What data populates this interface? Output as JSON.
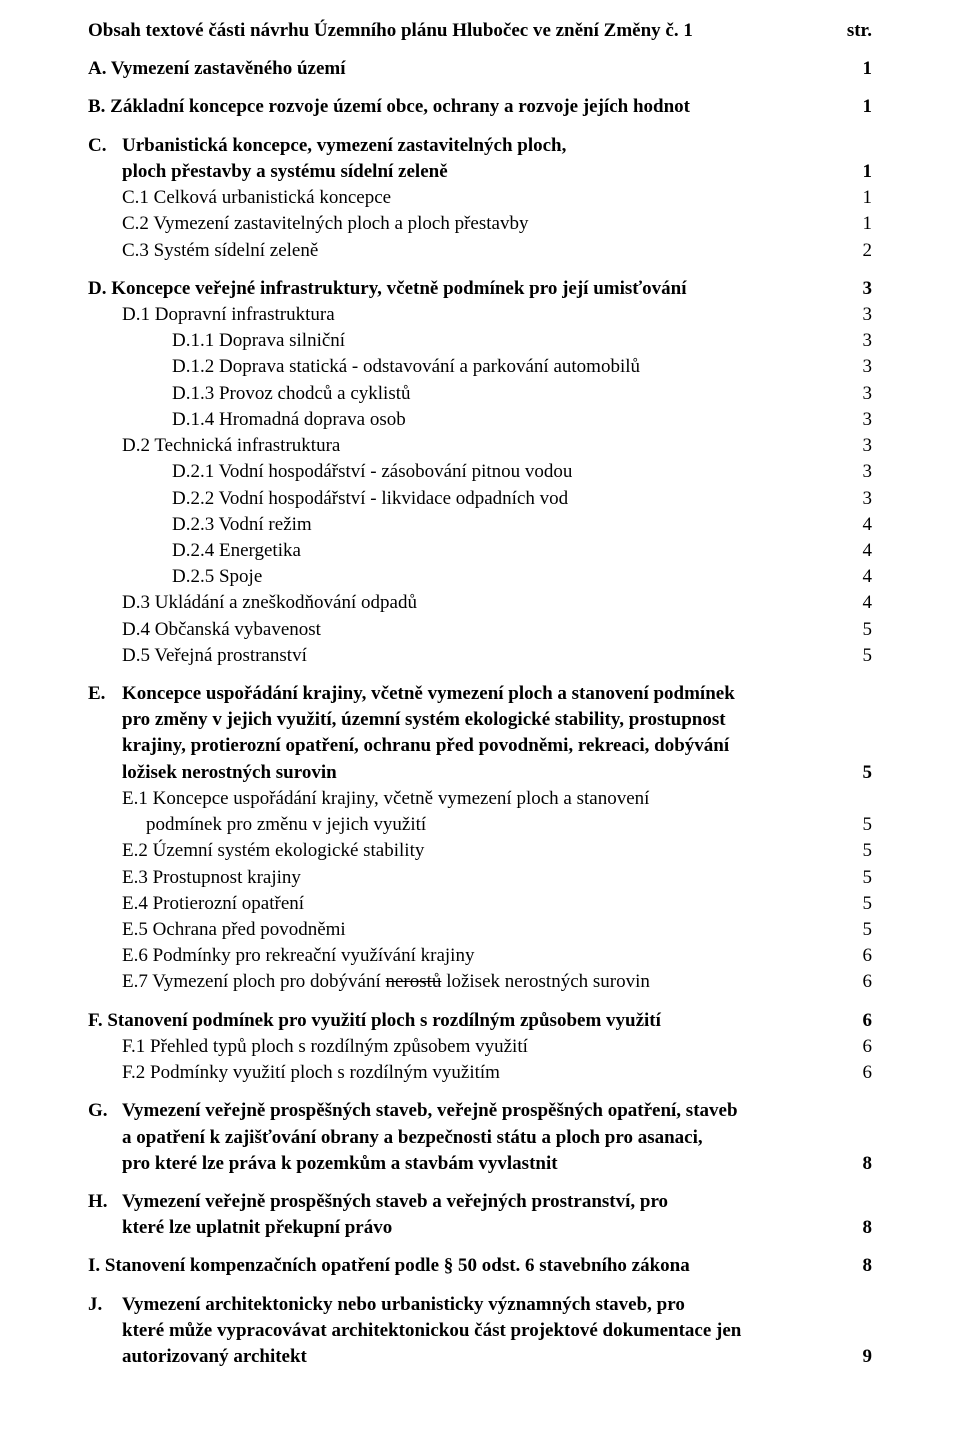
{
  "title": {
    "text": "Obsah textové části návrhu Územního plánu Hlubočec ve znění Změny č. 1",
    "page_label": "str."
  },
  "toc": {
    "A": {
      "label": "A.  Vymezení zastavěného území",
      "page": "1"
    },
    "B": {
      "label": "B.  Základní koncepce rozvoje území obce, ochrany a rozvoje jejích hodnot",
      "page": "1"
    },
    "C": {
      "marker": "C.",
      "label_l1": "Urbanistická koncepce, vymezení zastavitelných ploch,",
      "label_l2": "ploch přestavby a systému sídelní zeleně",
      "page": "1",
      "c1": {
        "label": "C.1 Celková urbanistická koncepce",
        "page": "1"
      },
      "c2": {
        "label": "C.2 Vymezení zastavitelných ploch a ploch přestavby",
        "page": "1"
      },
      "c3": {
        "label": "C.3 Systém sídelní zeleně",
        "page": "2"
      }
    },
    "D": {
      "label": "D.  Koncepce veřejné infrastruktury, včetně podmínek pro její umisťování",
      "page": "3",
      "d1": {
        "label": "D.1 Dopravní infrastruktura",
        "page": "3"
      },
      "d11": {
        "label": "D.1.1 Doprava silniční",
        "page": "3"
      },
      "d12": {
        "label": "D.1.2 Doprava statická - odstavování a parkování automobilů",
        "page": "3"
      },
      "d13": {
        "label": "D.1.3 Provoz chodců a cyklistů",
        "page": "3"
      },
      "d14": {
        "label": "D.1.4 Hromadná doprava osob",
        "page": "3"
      },
      "d2": {
        "label": "D.2 Technická infrastruktura",
        "page": "3"
      },
      "d21": {
        "label": "D.2.1 Vodní hospodářství - zásobování pitnou vodou",
        "page": "3"
      },
      "d22": {
        "label": "D.2.2 Vodní hospodářství - likvidace odpadních vod",
        "page": "3"
      },
      "d23": {
        "label": "D.2.3 Vodní režim",
        "page": "4"
      },
      "d24": {
        "label": "D.2.4 Energetika",
        "page": "4"
      },
      "d25": {
        "label": "D.2.5  Spoje",
        "page": "4"
      },
      "d3": {
        "label": "D.3 Ukládání a zneškodňování odpadů",
        "page": "4"
      },
      "d4": {
        "label": "D.4 Občanská vybavenost",
        "page": "5"
      },
      "d5": {
        "label": "D.5 Veřejná prostranství",
        "page": "5"
      }
    },
    "E": {
      "marker": "E.",
      "l1": "Koncepce uspořádání krajiny, včetně vymezení ploch a stanovení podmínek",
      "l2": "pro změny v jejich využití, územní systém ekologické stability, prostupnost",
      "l3": "krajiny, protierozní opatření, ochranu před povodněmi, rekreaci, dobývání",
      "l4": "ložisek nerostných surovin",
      "page": "5",
      "e1_l1": "E.1  Koncepce uspořádání krajiny, včetně vymezení ploch a stanovení",
      "e1_l2": " podmínek pro změnu v jejich využití",
      "e1_page": "5",
      "e2": {
        "label": "E.2  Územní systém ekologické stability",
        "page": "5"
      },
      "e3": {
        "label": "E.3  Prostupnost krajiny",
        "page": "5"
      },
      "e4": {
        "label": "E.4  Protierozní opatření",
        "page": "5"
      },
      "e5": {
        "label": "E.5  Ochrana před povodněmi",
        "page": "5"
      },
      "e6": {
        "label": "E.6  Podmínky pro rekreační využívání krajiny",
        "page": "6"
      },
      "e7_pre": "E.7  Vymezení ploch pro dobývání ",
      "e7_strike": "nerostů",
      "e7_post": " ložisek nerostných surovin",
      "e7_page": "6"
    },
    "F": {
      "label": "F.  Stanovení podmínek pro využití ploch s rozdílným způsobem využití",
      "page": "6",
      "f1": {
        "label": "F.1  Přehled typů ploch s rozdílným způsobem využití",
        "page": "6"
      },
      "f2": {
        "label": "F.2  Podmínky využití ploch s rozdílným využitím",
        "page": "6"
      }
    },
    "G": {
      "marker": "G.",
      "l1": "Vymezení veřejně prospěšných staveb, veřejně prospěšných opatření, staveb",
      "l2": "a opatření k zajišťování obrany a bezpečnosti státu a ploch pro asanaci,",
      "l3": "pro které lze práva k pozemkům a stavbám vyvlastnit",
      "page": "8"
    },
    "H": {
      "marker": "H.",
      "l1": "Vymezení veřejně prospěšných staveb a veřejných prostranství, pro",
      "l2": "které lze uplatnit překupní právo",
      "page": "8"
    },
    "I": {
      "label": "I.   Stanovení kompenzačních opatření podle § 50 odst. 6 stavebního zákona",
      "page": "8"
    },
    "J": {
      "marker": "J.",
      "l1": "Vymezení architektonicky nebo urbanisticky významných staveb, pro",
      "l2": "které může vypracovávat architektonickou část projektové dokumentace jen",
      "l3": "autorizovaný architekt",
      "page": "9"
    }
  }
}
